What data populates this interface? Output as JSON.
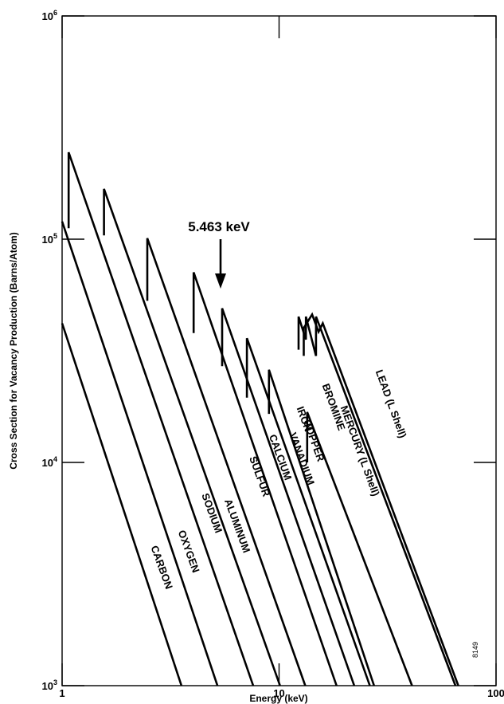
{
  "chart_data": {
    "type": "line",
    "xlabel": "Energy (keV)",
    "ylabel": "Cross Section for Vacancy Production (Barns/Atom)",
    "xscale": "log",
    "yscale": "log",
    "xlim": [
      1,
      100
    ],
    "ylim": [
      1000,
      1000000
    ],
    "x_ticks": [
      {
        "value": 1,
        "label": "1"
      },
      {
        "value": 10,
        "label": "10"
      },
      {
        "value": 100,
        "label": "100"
      }
    ],
    "y_ticks": [
      {
        "value": 1000,
        "base": "10",
        "exp": "3"
      },
      {
        "value": 10000,
        "base": "10",
        "exp": "4"
      },
      {
        "value": 100000,
        "base": "10",
        "exp": "5"
      },
      {
        "value": 1000000,
        "base": "10",
        "exp": "6"
      }
    ],
    "grid": false,
    "series": [
      {
        "name": "CARBON",
        "points": [
          [
            1,
            42000
          ],
          [
            3.55,
            1000
          ]
        ]
      },
      {
        "name": "OXYGEN",
        "points": [
          [
            1,
            120000
          ],
          [
            5.2,
            1000
          ]
        ]
      },
      {
        "name": "SODIUM",
        "points": [
          [
            1.072,
            112000
          ],
          [
            1.072,
            245000
          ],
          [
            7.6,
            1000
          ]
        ]
      },
      {
        "name": "ALUMINUM",
        "points": [
          [
            1.56,
            104000
          ],
          [
            1.56,
            168000
          ],
          [
            10.1,
            1000
          ]
        ]
      },
      {
        "name": "SULFUR",
        "points": [
          [
            2.47,
            53000
          ],
          [
            2.47,
            101000
          ],
          [
            13.2,
            1000
          ]
        ]
      },
      {
        "name": "CALCIUM",
        "points": [
          [
            4.04,
            38000
          ],
          [
            4.04,
            71000
          ],
          [
            18.4,
            1000
          ]
        ]
      },
      {
        "name": "VANADIUM",
        "points": [
          [
            5.463,
            27000
          ],
          [
            5.463,
            49000
          ],
          [
            22.2,
            1000
          ]
        ]
      },
      {
        "name": "IRON",
        "points": [
          [
            7.11,
            19500
          ],
          [
            7.11,
            36000
          ],
          [
            26.2,
            1000
          ]
        ]
      },
      {
        "name": "COPPER",
        "points": [
          [
            8.98,
            16500
          ],
          [
            8.98,
            26000
          ],
          [
            27.4,
            1000
          ]
        ]
      },
      {
        "name": "BROMINE",
        "points": [
          [
            13.47,
            10000
          ],
          [
            13.47,
            16800
          ],
          [
            41,
            1000
          ]
        ]
      },
      {
        "name": "MERCURY (L Shell)",
        "points": [
          [
            12.3,
            32000
          ],
          [
            12.3,
            45000
          ],
          [
            13.3,
            35500
          ],
          [
            13.3,
            45000
          ],
          [
            14.8,
            30000
          ],
          [
            14.8,
            45000
          ],
          [
            65,
            1000
          ]
        ]
      },
      {
        "name": "LEAD (L Shell)",
        "points": [
          [
            13.0,
            30000
          ],
          [
            13.0,
            40000
          ],
          [
            14.2,
            46000
          ],
          [
            15.2,
            38500
          ],
          [
            15.9,
            42000
          ],
          [
            67,
            1000
          ]
        ]
      }
    ],
    "series_labels": [
      "CARBON",
      "OXYGEN",
      "SODIUM",
      "ALUMINUM",
      "SULFUR",
      "CALCIUM",
      "VANADIUM",
      "IRON",
      "COPPER",
      "BROMINE",
      "MERCURY (L Shell)",
      "LEAD (L Shell)"
    ],
    "annotations": [
      {
        "text": "5.463 keV",
        "x": 5.463,
        "y": 49000
      }
    ],
    "figure_id": "8149"
  }
}
